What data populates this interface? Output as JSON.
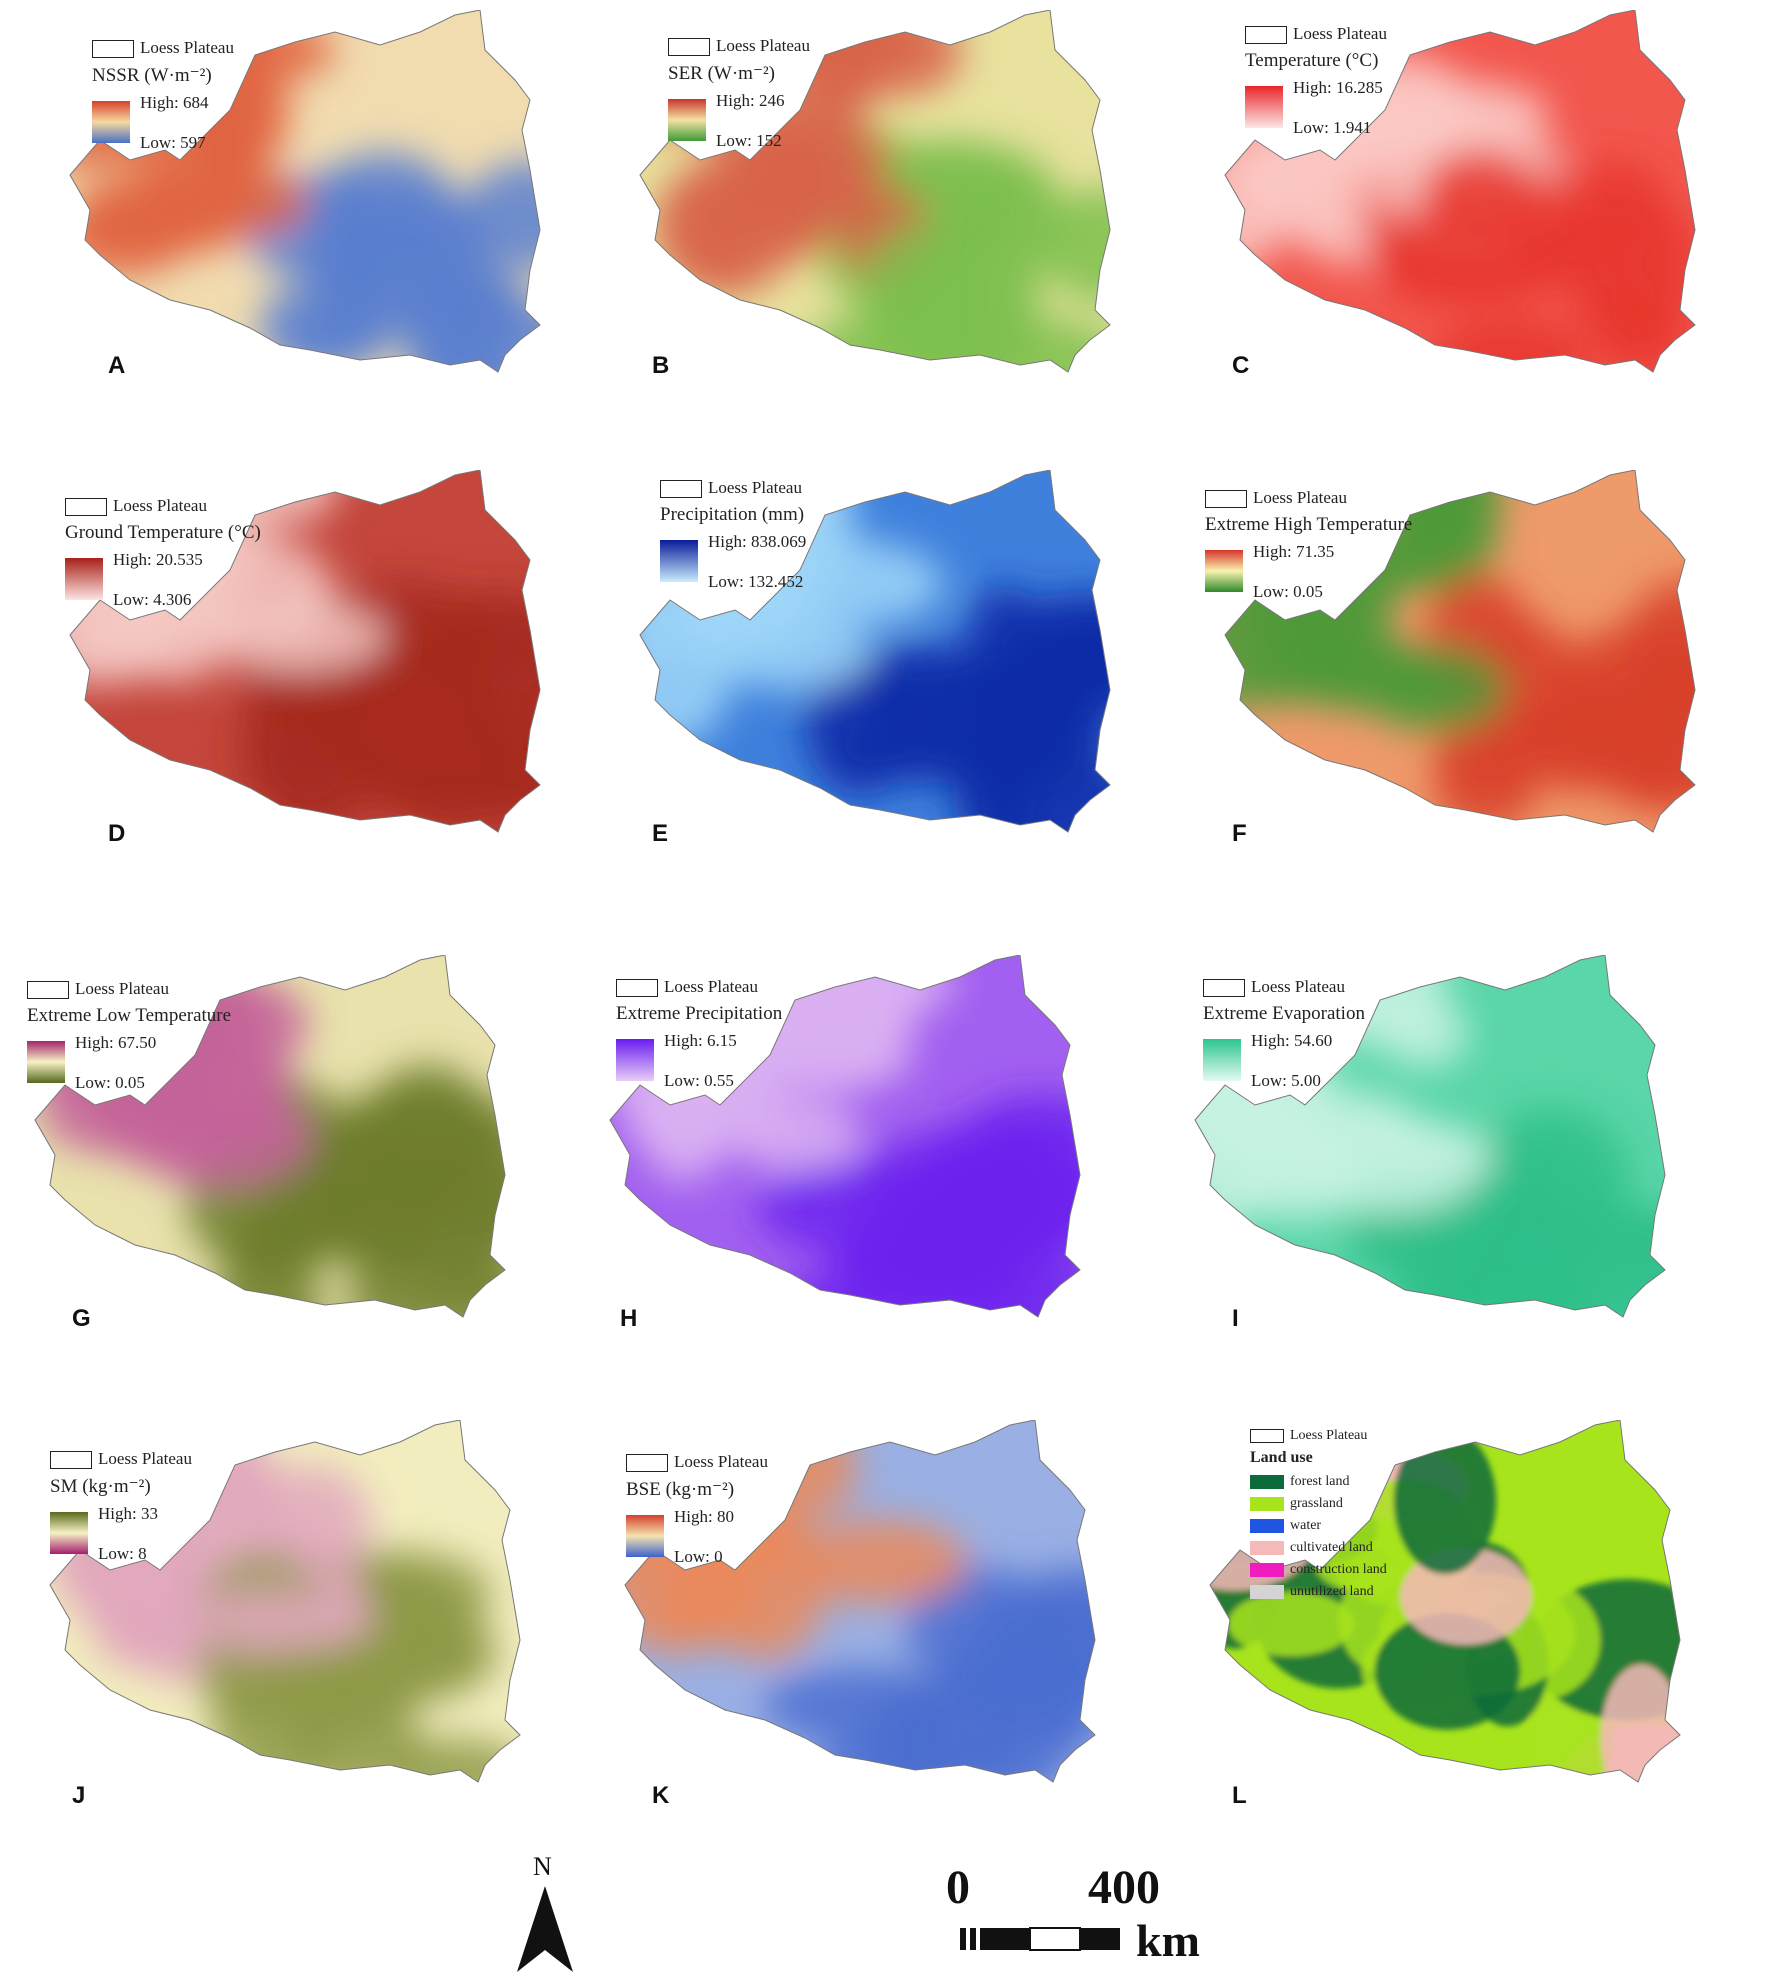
{
  "boundary_label": "Loess Plateau",
  "panels": [
    {
      "id": "A",
      "title": "NSSR (W·m⁻²)",
      "high": "High: 684",
      "low": "Low: 597",
      "ramp": [
        "#d8402c",
        "#f6d9a0",
        "#4a70c4"
      ],
      "fill": [
        "#f1dcb0",
        "#5b7fd0",
        "#e0643f"
      ]
    },
    {
      "id": "B",
      "title": "SER (W·m⁻²)",
      "high": "High: 246",
      "low": "Low: 152",
      "ramp": [
        "#c8362a",
        "#f3e2a2",
        "#3f9a38"
      ],
      "fill": [
        "#e8e29e",
        "#7cbf4e",
        "#d8644a"
      ]
    },
    {
      "id": "C",
      "title": "Temperature (°C)",
      "high": "High: 16.285",
      "low": "Low: 1.941",
      "ramp": [
        "#e8262a",
        "#fde6e6"
      ],
      "fill": [
        "#f2574e",
        "#e8362e",
        "#fbc9c6"
      ]
    },
    {
      "id": "D",
      "title": "Ground Temperature (°C)",
      "high": "High: 20.535",
      "low": "Low: 4.306",
      "ramp": [
        "#a8201a",
        "#fde3e1"
      ],
      "fill": [
        "#c4463c",
        "#a72a20",
        "#f4c8c3"
      ]
    },
    {
      "id": "E",
      "title": "Precipitation (mm)",
      "high": "High: 838.069",
      "low": "Low: 132.452",
      "ramp": [
        "#0a1c9a",
        "#c9ecfd"
      ],
      "fill": [
        "#3f80dd",
        "#0b2aa8",
        "#9fd6f8"
      ]
    },
    {
      "id": "F",
      "title": "Extreme High Temperature",
      "high": "High: 71.35",
      "low": "Low: 0.05",
      "ramp": [
        "#d7342a",
        "#f8f3ae",
        "#2f8a2b"
      ],
      "fill": [
        "#ef9a6a",
        "#d8402c",
        "#4d9a3a"
      ]
    },
    {
      "id": "G",
      "title": "Extreme Low Temperature",
      "high": "High: 67.50",
      "low": "Low: 0.05",
      "ramp": [
        "#a4246e",
        "#f6f2c4",
        "#55681f"
      ],
      "fill": [
        "#e9e2ad",
        "#6d7c2c",
        "#c4649a"
      ]
    },
    {
      "id": "H",
      "title": "Extreme Precipitation",
      "high": "High: 6.15",
      "low": "Low: 0.55",
      "ramp": [
        "#6a1df0",
        "#e8cdf6"
      ],
      "fill": [
        "#a260f0",
        "#6c23ee",
        "#d9b0f2"
      ]
    },
    {
      "id": "I",
      "title": "Extreme Evaporation",
      "high": "High: 54.60",
      "low": "Low: 5.00",
      "ramp": [
        "#2cc58e",
        "#e4faf1"
      ],
      "fill": [
        "#5ad6a8",
        "#2fbf8a",
        "#c7f2e2"
      ]
    },
    {
      "id": "J",
      "title": "SM (kg·m⁻²)",
      "high": "High: 33",
      "low": "Low: 8",
      "ramp": [
        "#5c6a1c",
        "#f6f2c4",
        "#a41c6e"
      ],
      "fill": [
        "#f2edbe",
        "#8f9a48",
        "#e2a8bd"
      ]
    },
    {
      "id": "K",
      "title": "BSE (kg·m⁻²)",
      "high": "High: 80",
      "low": "Low: 0",
      "ramp": [
        "#d4412c",
        "#f5e4b0",
        "#3d62cc"
      ],
      "fill": [
        "#9ab0e4",
        "#4a6dd0",
        "#ea8a5c"
      ]
    }
  ],
  "landuse": {
    "id": "L",
    "title": "Land use",
    "classes": [
      {
        "name": "forest land",
        "color": "#0c6b3a"
      },
      {
        "name": "grassland",
        "color": "#a8e41c"
      },
      {
        "name": "water",
        "color": "#1f55e0"
      },
      {
        "name": "cultivated land",
        "color": "#f6b9b9"
      },
      {
        "name": "construction land",
        "color": "#f01cc0"
      },
      {
        "name": "unutilized land",
        "color": "#d4d4d4"
      }
    ]
  },
  "north_label": "N",
  "scale": {
    "label_start": "0",
    "label_end": "400",
    "unit": "km"
  }
}
